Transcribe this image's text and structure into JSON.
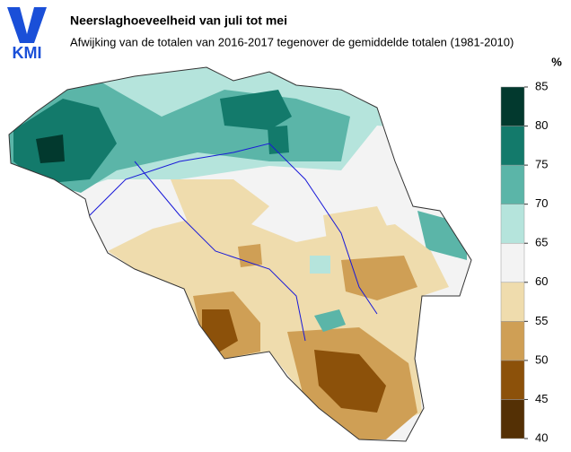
{
  "header": {
    "logo": "KMI",
    "title": "Neerslaghoeveelheid van juli tot mei",
    "subtitle": "Afwijking van de totalen van 2016-2017 tegenover de gemiddelde totalen (1981-2010)"
  },
  "legend": {
    "unit": "%",
    "ticks": [
      40,
      45,
      50,
      55,
      60,
      65,
      70,
      75,
      80,
      85
    ],
    "colors": [
      "#543005",
      "#8c510a",
      "#cf9f55",
      "#efdcad",
      "#f3f3f3",
      "#b5e4dc",
      "#5bb5a8",
      "#137a6b",
      "#02392e"
    ]
  }
}
